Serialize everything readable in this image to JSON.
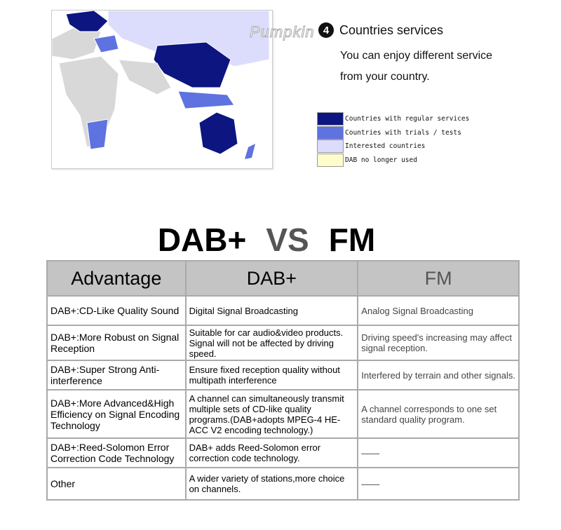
{
  "map": {
    "watermark": "Pumpkin",
    "colors": {
      "regular": "#0c1580",
      "trials": "#5e72e0",
      "interested": "#dcdcfc",
      "no_longer": "#fffccc",
      "other": "#d8d8d8"
    }
  },
  "section": {
    "number": "4",
    "title": "Countries services",
    "line1": "You can enjoy different service",
    "line2": "from your country."
  },
  "legend": [
    {
      "label": "Countries with regular services",
      "color": "#0c1580"
    },
    {
      "label": "Countries with trials / tests",
      "color": "#5e72e0"
    },
    {
      "label": "Interested countries",
      "color": "#dcdcfc"
    },
    {
      "label": "DAB no longer used",
      "color": "#fffccc"
    }
  ],
  "heading": {
    "left": "DAB+",
    "mid": "VS",
    "right": "FM"
  },
  "table": {
    "headers": [
      "Advantage",
      "DAB+",
      "FM"
    ],
    "rows": [
      [
        "DAB+:CD-Like Quality Sound",
        "Digital Signal Broadcasting",
        "Analog Signal Broadcasting"
      ],
      [
        "DAB+:More Robust on Signal Reception",
        "Suitable for car audio&video products. Signal will not be affected by driving speed.",
        "Driving speed's increasing may affect signal reception."
      ],
      [
        "DAB+:Super Strong Anti-interference",
        "Ensure fixed reception quality without multipath interference",
        "Interfered by terrain and other signals."
      ],
      [
        "DAB+:More Advanced&High Efficiency on Signal Encoding Technology",
        "A channel can simultaneously transmit multiple sets of CD-like quality programs.(DAB+adopts MPEG-4 HE-ACC V2 encoding technology.)",
        "A channel corresponds to one set standard quality program."
      ],
      [
        "DAB+:Reed-Solomon Error Correction Code Technology",
        "DAB+ adds Reed-Solomon error correction code technology.",
        "——"
      ],
      [
        "Other",
        "A wider variety of stations,more choice on channels.",
        "——"
      ]
    ]
  }
}
